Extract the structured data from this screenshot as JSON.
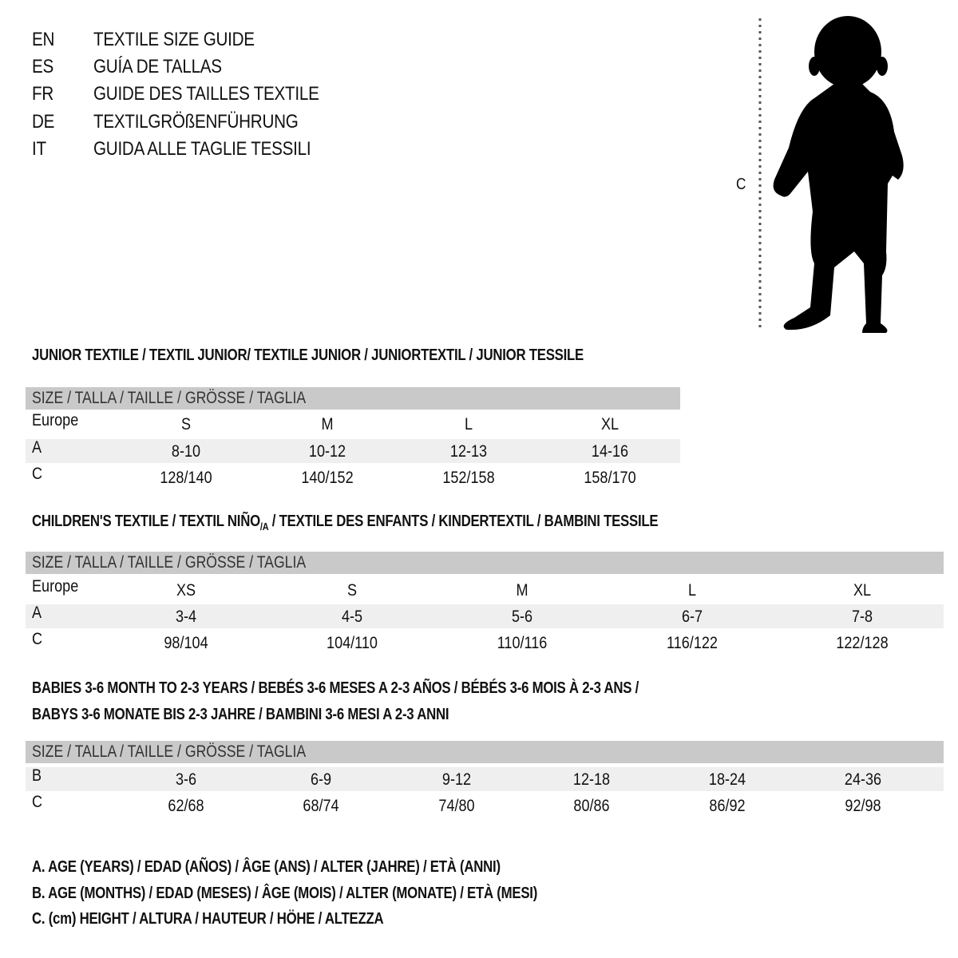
{
  "languages": [
    {
      "code": "EN",
      "title": "TEXTILE SIZE GUIDE"
    },
    {
      "code": "ES",
      "title": "GUÍA DE TALLAS"
    },
    {
      "code": "FR",
      "title": "GUIDE DES TAILLES TEXTILE"
    },
    {
      "code": "DE",
      "title": "TEXTILGRÖßENFÜHRUNG"
    },
    {
      "code": "IT",
      "title": "GUIDA ALLE TAGLIE TESSILI"
    }
  ],
  "figure": {
    "measure_label": "C",
    "icon": "child-silhouette-icon"
  },
  "colors": {
    "header_bar": "#c9c9c9",
    "row_band": "#efefef"
  },
  "size_header": "SIZE / TALLA / TAILLE / GRÖSSE / TAGLIA",
  "junior": {
    "heading": "JUNIOR TEXTILE / TEXTIL JUNIOR/ TEXTILE JUNIOR / JUNIORTEXTIL / JUNIOR TESSILE",
    "rows": [
      {
        "label": "Europe",
        "values": [
          "S",
          "M",
          "L",
          "XL"
        ]
      },
      {
        "label": "A",
        "values": [
          "8-10",
          "10-12",
          "12-13",
          "14-16"
        ]
      },
      {
        "label": "C",
        "values": [
          "128/140",
          "140/152",
          "152/158",
          "158/170"
        ]
      }
    ]
  },
  "children": {
    "heading_pre": "CHILDREN'S TEXTILE / TEXTIL NIÑO",
    "heading_sub": "/A",
    "heading_post": " / TEXTILE DES ENFANTS / KINDERTEXTIL / BAMBINI TESSILE",
    "rows": [
      {
        "label": "Europe",
        "values": [
          "XS",
          "S",
          "M",
          "L",
          "XL"
        ]
      },
      {
        "label": "A",
        "values": [
          "3-4",
          "4-5",
          "5-6",
          "6-7",
          "7-8"
        ]
      },
      {
        "label": "C",
        "values": [
          "98/104",
          "104/110",
          "110/116",
          "116/122",
          "122/128"
        ]
      }
    ]
  },
  "babies": {
    "heading_line1": "BABIES 3-6 MONTH TO 2-3 YEARS / BEBÉS 3-6 MESES A 2-3 AÑOS / BÉBÉS 3-6 MOIS À 2-3 ANS /",
    "heading_line2": "BABYS 3-6 MONATE BIS 2-3 JAHRE / BAMBINI 3-6 MESI A 2-3 ANNI",
    "rows": [
      {
        "label": "B",
        "values": [
          "3-6",
          "6-9",
          "9-12",
          "12-18",
          "18-24",
          "24-36"
        ]
      },
      {
        "label": "C",
        "values": [
          "62/68",
          "68/74",
          "74/80",
          "80/86",
          "86/92",
          "92/98"
        ]
      }
    ]
  },
  "legend": [
    "A. AGE (YEARS) / EDAD (AÑOS) / ÂGE (ANS) / ALTER (JAHRE) / ETÀ (ANNI)",
    "B. AGE (MONTHS) / EDAD (MESES) / ÂGE (MOIS) / ALTER (MONATE) / ETÀ (MESI)",
    "C. (cm) HEIGHT / ALTURA / HAUTEUR / HÖHE / ALTEZZA"
  ]
}
